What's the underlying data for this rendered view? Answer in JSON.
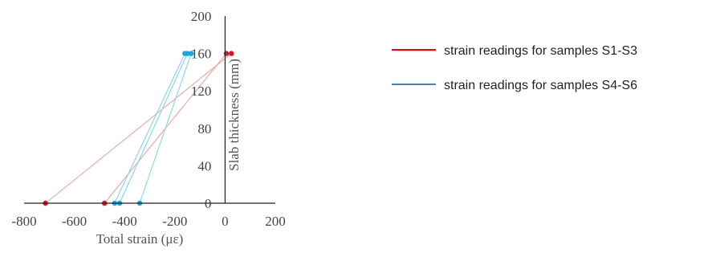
{
  "chart_data": {
    "type": "scatter",
    "xlabel": "Total strain (με)",
    "ylabel": "Slab thickness (mm)",
    "xlim": [
      -800,
      200
    ],
    "ylim": [
      0,
      200
    ],
    "x_ticks": [
      -800,
      -600,
      -400,
      -200,
      0,
      200
    ],
    "y_ticks": [
      0,
      40,
      80,
      120,
      160,
      200
    ],
    "grid": false,
    "legend_position": "right",
    "series": [
      {
        "name": "strain readings for samples S1-S3",
        "color": "#ff0000",
        "line_color": "#f4a0a0",
        "marker_color": "#e0102a",
        "profiles": [
          [
            [
              -715,
              0
            ],
            [
              25,
              160
            ]
          ],
          [
            [
              -480,
              0
            ],
            [
              5,
              160
            ]
          ]
        ]
      },
      {
        "name": "strain readings for samples S4-S6",
        "color": "#4a7fc0",
        "line_color": "#7fd4ee",
        "marker_color": "#1aa6e0",
        "profiles": [
          [
            [
              -440,
              0
            ],
            [
              -160,
              160
            ]
          ],
          [
            [
              -420,
              0
            ],
            [
              -150,
              160
            ]
          ],
          [
            [
              -340,
              0
            ],
            [
              -135,
              160
            ]
          ]
        ]
      }
    ]
  }
}
